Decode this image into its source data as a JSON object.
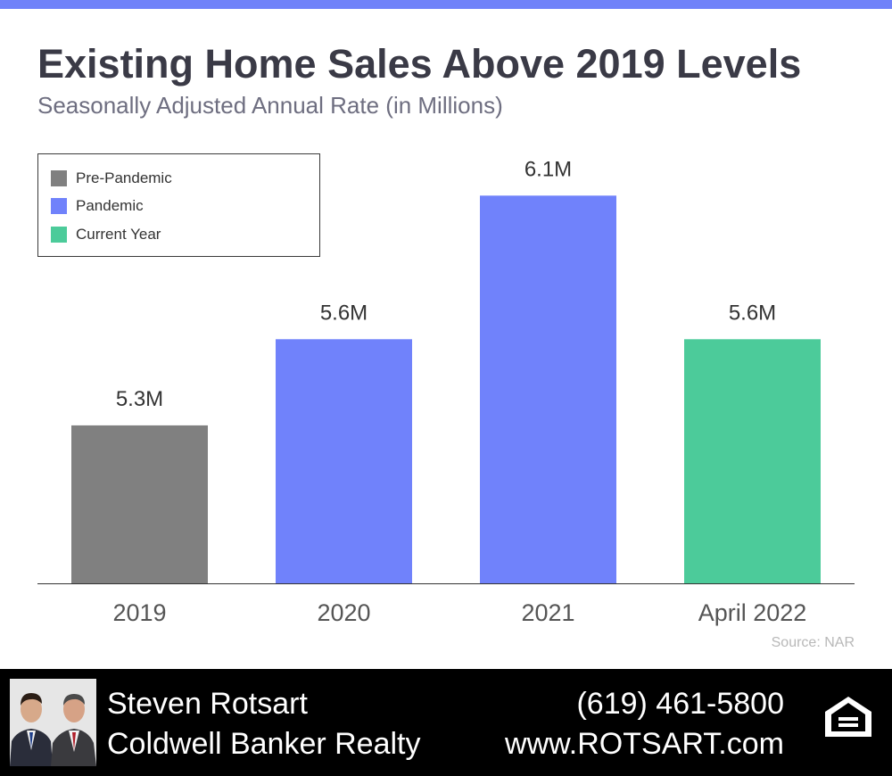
{
  "header": {
    "title": "Existing Home Sales Above 2019 Levels",
    "subtitle": "Seasonally Adjusted Annual Rate (in Millions)"
  },
  "legend": {
    "items": [
      {
        "label": "Pre-Pandemic",
        "color": "#808080"
      },
      {
        "label": "Pandemic",
        "color": "#7082fb"
      },
      {
        "label": "Current Year",
        "color": "#4ccb9a"
      }
    ]
  },
  "chart_data": {
    "type": "bar",
    "title": "Existing Home Sales Above 2019 Levels",
    "subtitle": "Seasonally Adjusted Annual Rate (in Millions)",
    "categories": [
      "2019",
      "2020",
      "2021",
      "April 2022"
    ],
    "values": [
      5.3,
      5.6,
      6.1,
      5.6
    ],
    "data_labels": [
      "5.3M",
      "5.6M",
      "6.1M",
      "5.6M"
    ],
    "groups": [
      "Pre-Pandemic",
      "Pandemic",
      "Pandemic",
      "Current Year"
    ],
    "colors": [
      "#808080",
      "#7082fb",
      "#7082fb",
      "#4ccb9a"
    ],
    "xlabel": "",
    "ylabel": "",
    "ylim": [
      4.75,
      6.16
    ],
    "y_axis_visible": false,
    "grid": false,
    "legend_position": "top-left"
  },
  "source": "Source: NAR",
  "footer": {
    "name": "Steven Rotsart",
    "company": "Coldwell Banker Realty",
    "phone": "(619) 461-5800",
    "website": "www.ROTSART.com",
    "logo_icon": "equal-housing-opportunity-icon",
    "logo_text": "EQUAL HOUSING OPPORTUNITY",
    "background": "#000000",
    "text_color": "#ffffff"
  }
}
